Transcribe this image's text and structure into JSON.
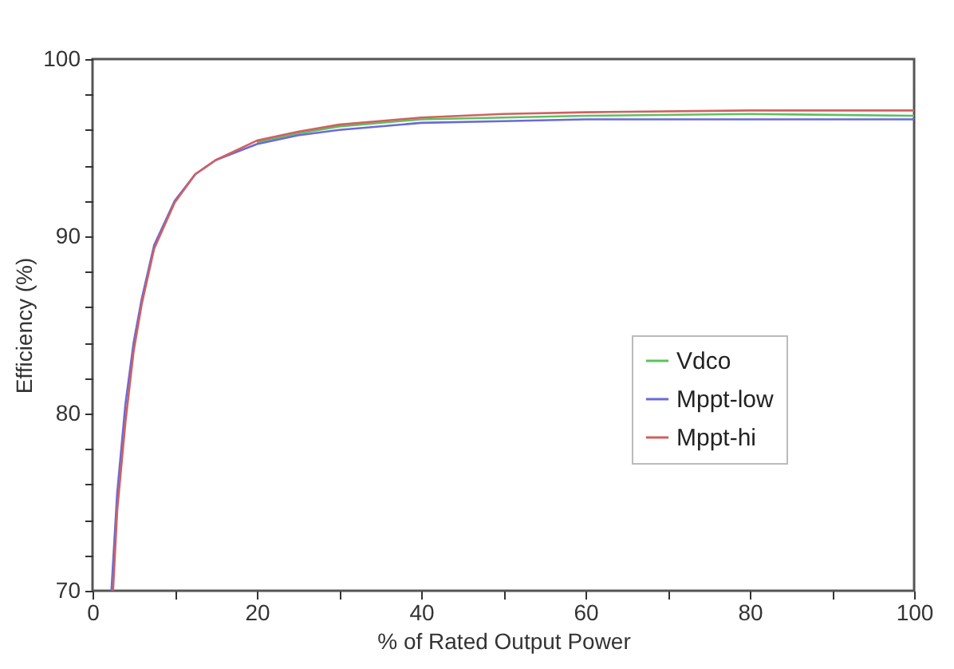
{
  "chart_data": {
    "type": "line",
    "xlabel": "% of Rated Output Power",
    "ylabel": "Efficiency (%)",
    "xlim": [
      0,
      100
    ],
    "ylim": [
      70,
      100
    ],
    "xticks": [
      0,
      {
        "value": 10,
        "label": null
      },
      20,
      {
        "value": 30,
        "label": null
      },
      40,
      {
        "value": 50,
        "label": null
      },
      60,
      {
        "value": 70,
        "label": null
      },
      80,
      {
        "value": 90,
        "label": null
      },
      100
    ],
    "yticks": [
      70,
      {
        "value": 72,
        "label": null
      },
      {
        "value": 74,
        "label": null
      },
      {
        "value": 76,
        "label": null
      },
      {
        "value": 78,
        "label": null
      },
      80,
      {
        "value": 82,
        "label": null
      },
      {
        "value": 84,
        "label": null
      },
      {
        "value": 86,
        "label": null
      },
      {
        "value": 88,
        "label": null
      },
      90,
      {
        "value": 92,
        "label": null
      },
      {
        "value": 94,
        "label": null
      },
      {
        "value": 96,
        "label": null
      },
      {
        "value": 98,
        "label": null
      },
      100
    ],
    "grid": false,
    "legend": "bottom right",
    "line_style": "solid",
    "series": [
      {
        "name": "Vdco",
        "color": "#5ec05e",
        "x": [
          20,
          25,
          30,
          40,
          50,
          60,
          80,
          100
        ],
        "values": [
          95.3,
          95.8,
          96.2,
          96.6,
          96.7,
          96.8,
          96.9,
          96.8
        ]
      },
      {
        "name": "Mppt-low",
        "color": "#6a6ad8",
        "x": [
          2.3,
          3,
          4,
          5,
          6,
          7.5,
          10,
          12.5,
          15,
          20,
          25,
          30,
          40,
          50,
          60,
          80,
          100
        ],
        "values": [
          70,
          75.5,
          80.5,
          84,
          86.5,
          89.5,
          92,
          93.5,
          94.3,
          95.2,
          95.7,
          96,
          96.4,
          96.5,
          96.6,
          96.6,
          96.6
        ]
      },
      {
        "name": "Mppt-hi",
        "color": "#d06060",
        "x": [
          2.5,
          3,
          4,
          5,
          6,
          7.5,
          10,
          12.5,
          15,
          20,
          25,
          30,
          40,
          50,
          60,
          80,
          100
        ],
        "values": [
          70,
          74.5,
          79.5,
          83.5,
          86.2,
          89.3,
          91.9,
          93.5,
          94.3,
          95.4,
          95.9,
          96.3,
          96.7,
          96.9,
          97,
          97.1,
          97.1
        ]
      }
    ]
  }
}
